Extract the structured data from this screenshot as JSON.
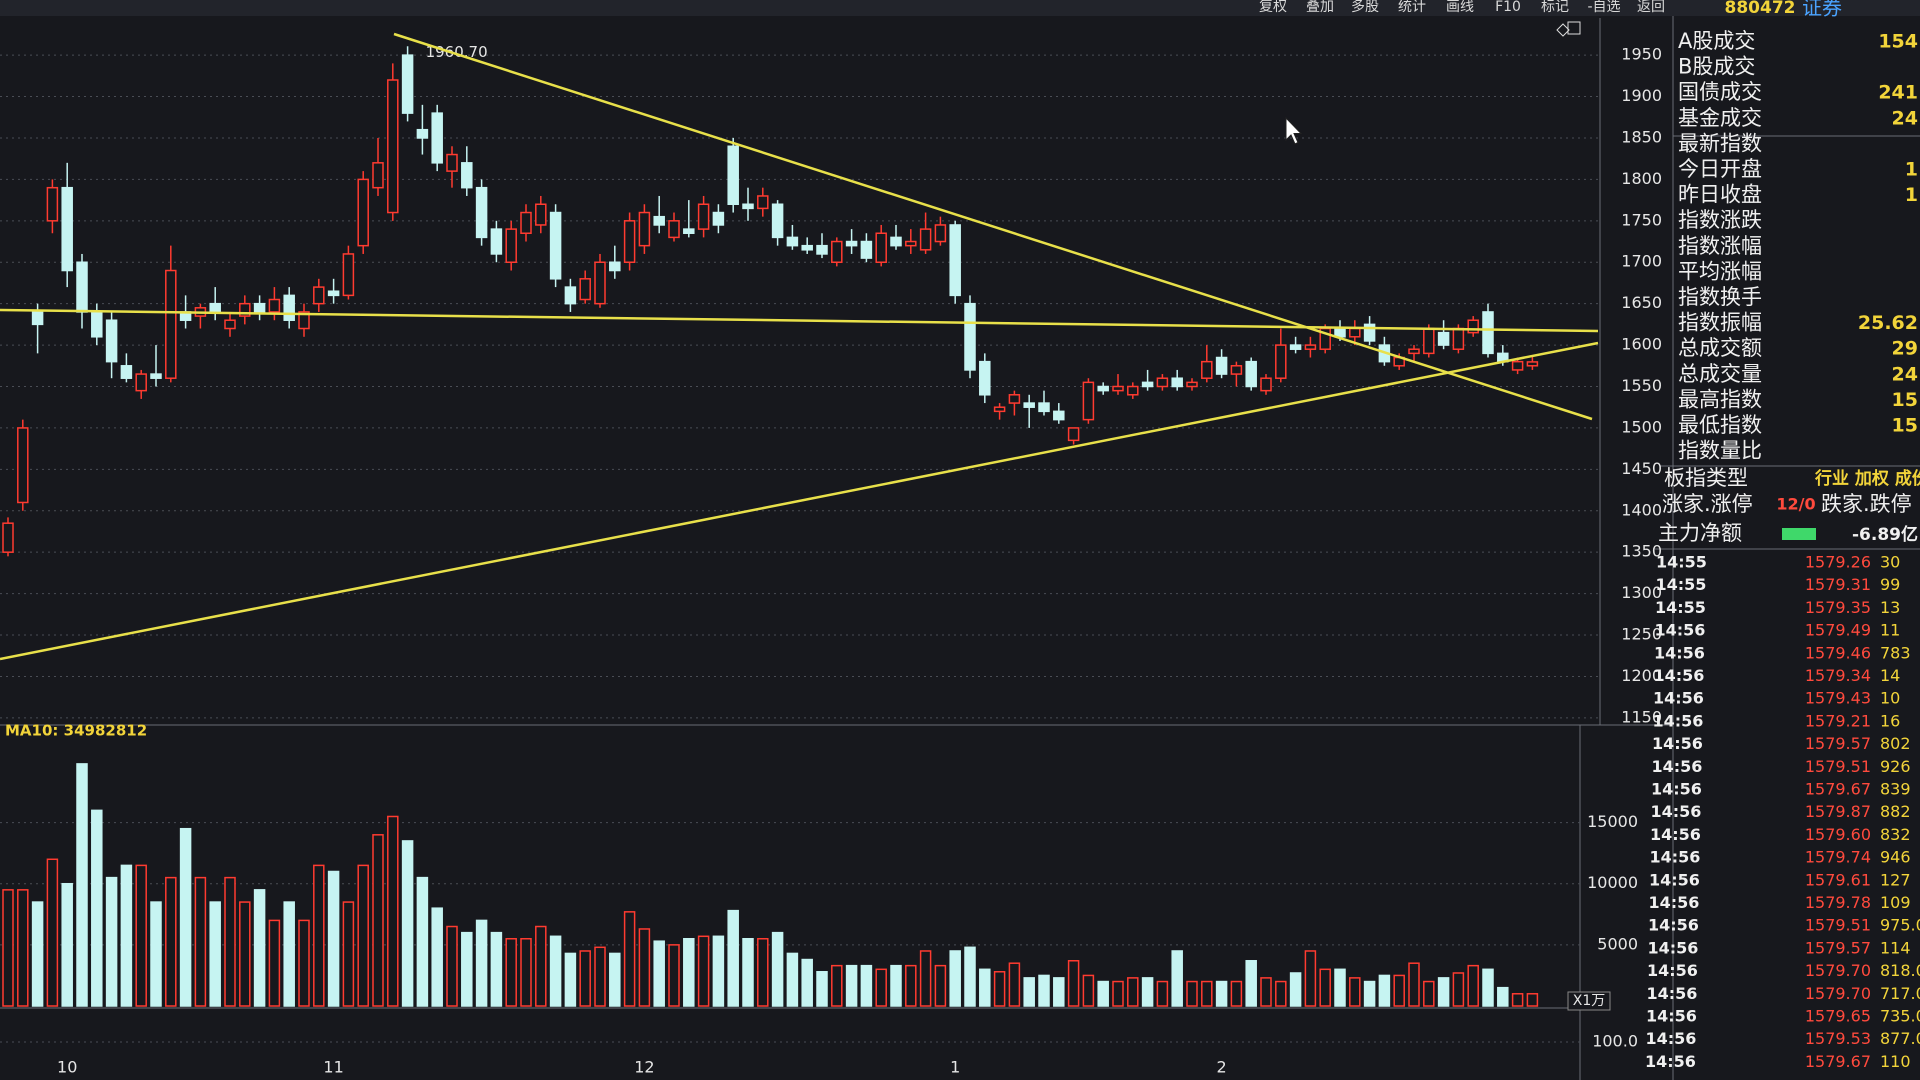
{
  "toolbar": {
    "buttons": [
      "复权",
      "叠加",
      "多股",
      "统计",
      "画线",
      "F10",
      "标记",
      "-自选",
      "返回"
    ],
    "code": "880472",
    "name": "证券"
  },
  "chart_data": [
    {
      "type": "candlestick",
      "up_color": "#ff3b30",
      "down_color": "#c6f4f2",
      "grid": true,
      "ylim": [
        1110,
        1990
      ],
      "yticks": [
        1150,
        1200,
        1250,
        1300,
        1350,
        1400,
        1450,
        1500,
        1550,
        1600,
        1650,
        1700,
        1750,
        1800,
        1850,
        1900,
        1950
      ],
      "high_annotation": {
        "value": 1960.7,
        "label": "1960.70"
      },
      "categories": [
        null,
        null,
        null,
        null,
        "10",
        null,
        null,
        null,
        null,
        null,
        null,
        null,
        null,
        null,
        null,
        null,
        null,
        null,
        null,
        null,
        null,
        null,
        "11",
        null,
        null,
        null,
        null,
        null,
        null,
        null,
        null,
        null,
        null,
        null,
        null,
        null,
        null,
        null,
        null,
        null,
        null,
        null,
        null,
        "12",
        null,
        null,
        null,
        null,
        null,
        null,
        null,
        null,
        null,
        null,
        null,
        null,
        null,
        null,
        null,
        null,
        null,
        null,
        null,
        null,
        "1",
        null,
        null,
        null,
        null,
        null,
        null,
        null,
        null,
        null,
        null,
        null,
        null,
        null,
        null,
        null,
        null,
        null,
        "2",
        null,
        null,
        null,
        null,
        null,
        null,
        null,
        null,
        null,
        null,
        null,
        null,
        null,
        null,
        null,
        null,
        null,
        null,
        null,
        null,
        null
      ],
      "ohlc": [
        [
          1350,
          1392,
          1345,
          1385
        ],
        [
          1410,
          1510,
          1400,
          1500
        ],
        [
          1640,
          1650,
          1590,
          1625
        ],
        [
          1750,
          1800,
          1735,
          1790
        ],
        [
          1790,
          1820,
          1670,
          1690
        ],
        [
          1700,
          1710,
          1620,
          1640
        ],
        [
          1640,
          1650,
          1600,
          1610
        ],
        [
          1630,
          1640,
          1560,
          1580
        ],
        [
          1575,
          1590,
          1555,
          1560
        ],
        [
          1545,
          1570,
          1535,
          1565
        ],
        [
          1565,
          1600,
          1550,
          1560
        ],
        [
          1560,
          1720,
          1555,
          1690
        ],
        [
          1640,
          1660,
          1620,
          1630
        ],
        [
          1635,
          1650,
          1620,
          1645
        ],
        [
          1650,
          1670,
          1630,
          1640
        ],
        [
          1620,
          1640,
          1610,
          1630
        ],
        [
          1635,
          1660,
          1625,
          1650
        ],
        [
          1650,
          1660,
          1630,
          1640
        ],
        [
          1640,
          1670,
          1630,
          1655
        ],
        [
          1660,
          1670,
          1620,
          1630
        ],
        [
          1620,
          1650,
          1610,
          1640
        ],
        [
          1650,
          1680,
          1640,
          1670
        ],
        [
          1665,
          1680,
          1650,
          1660
        ],
        [
          1660,
          1720,
          1655,
          1710
        ],
        [
          1720,
          1810,
          1710,
          1800
        ],
        [
          1790,
          1850,
          1780,
          1820
        ],
        [
          1760,
          1940,
          1750,
          1920
        ],
        [
          1950,
          1960.7,
          1870,
          1880
        ],
        [
          1860,
          1890,
          1830,
          1850
        ],
        [
          1880,
          1890,
          1810,
          1820
        ],
        [
          1810,
          1840,
          1790,
          1830
        ],
        [
          1820,
          1840,
          1780,
          1790
        ],
        [
          1790,
          1800,
          1720,
          1730
        ],
        [
          1740,
          1750,
          1700,
          1710
        ],
        [
          1700,
          1750,
          1690,
          1740
        ],
        [
          1735,
          1770,
          1725,
          1760
        ],
        [
          1745,
          1780,
          1735,
          1770
        ],
        [
          1760,
          1770,
          1670,
          1680
        ],
        [
          1670,
          1680,
          1640,
          1650
        ],
        [
          1655,
          1690,
          1650,
          1680
        ],
        [
          1650,
          1710,
          1645,
          1700
        ],
        [
          1700,
          1720,
          1680,
          1690
        ],
        [
          1700,
          1760,
          1690,
          1750
        ],
        [
          1720,
          1770,
          1710,
          1760
        ],
        [
          1755,
          1780,
          1735,
          1745
        ],
        [
          1730,
          1760,
          1725,
          1750
        ],
        [
          1740,
          1775,
          1730,
          1735
        ],
        [
          1740,
          1780,
          1730,
          1770
        ],
        [
          1760,
          1770,
          1735,
          1745
        ],
        [
          1840,
          1850,
          1760,
          1770
        ],
        [
          1770,
          1790,
          1750,
          1765
        ],
        [
          1765,
          1790,
          1755,
          1780
        ],
        [
          1770,
          1775,
          1720,
          1730
        ],
        [
          1730,
          1745,
          1715,
          1720
        ],
        [
          1720,
          1730,
          1710,
          1715
        ],
        [
          1720,
          1735,
          1705,
          1710
        ],
        [
          1700,
          1730,
          1695,
          1725
        ],
        [
          1725,
          1740,
          1710,
          1720
        ],
        [
          1725,
          1735,
          1700,
          1705
        ],
        [
          1700,
          1745,
          1695,
          1735
        ],
        [
          1730,
          1745,
          1715,
          1720
        ],
        [
          1720,
          1740,
          1710,
          1725
        ],
        [
          1715,
          1760,
          1710,
          1740
        ],
        [
          1725,
          1755,
          1720,
          1745
        ],
        [
          1745,
          1750,
          1650,
          1660
        ],
        [
          1650,
          1660,
          1560,
          1570
        ],
        [
          1580,
          1590,
          1530,
          1540
        ],
        [
          1520,
          1530,
          1510,
          1525
        ],
        [
          1530,
          1545,
          1515,
          1540
        ],
        [
          1530,
          1540,
          1500,
          1525
        ],
        [
          1530,
          1545,
          1515,
          1520
        ],
        [
          1520,
          1530,
          1505,
          1510
        ],
        [
          1485,
          1500,
          1480,
          1500
        ],
        [
          1510,
          1560,
          1505,
          1555
        ],
        [
          1550,
          1555,
          1540,
          1545
        ],
        [
          1545,
          1565,
          1540,
          1550
        ],
        [
          1540,
          1555,
          1535,
          1550
        ],
        [
          1555,
          1570,
          1545,
          1550
        ],
        [
          1550,
          1565,
          1545,
          1560
        ],
        [
          1560,
          1570,
          1545,
          1550
        ],
        [
          1550,
          1560,
          1545,
          1555
        ],
        [
          1560,
          1600,
          1555,
          1580
        ],
        [
          1585,
          1595,
          1560,
          1565
        ],
        [
          1565,
          1580,
          1550,
          1575
        ],
        [
          1580,
          1585,
          1545,
          1550
        ],
        [
          1545,
          1565,
          1540,
          1560
        ],
        [
          1560,
          1620,
          1555,
          1600
        ],
        [
          1600,
          1610,
          1590,
          1595
        ],
        [
          1595,
          1610,
          1585,
          1600
        ],
        [
          1595,
          1625,
          1590,
          1620
        ],
        [
          1620,
          1630,
          1605,
          1610
        ],
        [
          1610,
          1630,
          1600,
          1620
        ],
        [
          1625,
          1635,
          1600,
          1605
        ],
        [
          1600,
          1610,
          1575,
          1580
        ],
        [
          1575,
          1590,
          1570,
          1585
        ],
        [
          1590,
          1600,
          1580,
          1595
        ],
        [
          1590,
          1625,
          1585,
          1620
        ],
        [
          1615,
          1630,
          1595,
          1600
        ],
        [
          1595,
          1625,
          1590,
          1620
        ],
        [
          1615,
          1635,
          1610,
          1630
        ],
        [
          1640,
          1650,
          1585,
          1590
        ],
        [
          1590,
          1600,
          1575,
          1580
        ],
        [
          1570,
          1585,
          1565,
          1580
        ],
        [
          1575,
          1588,
          1570,
          1579.67
        ]
      ]
    },
    {
      "type": "bar",
      "title": "MA10: 34982812",
      "unit_label": "X1万",
      "grid": true,
      "ylim": [
        0,
        22000
      ],
      "yticks": [
        5000,
        10000,
        15000
      ],
      "values": [
        9500,
        9500,
        8500,
        12000,
        10000,
        19800,
        16000,
        10500,
        11500,
        11500,
        8500,
        10500,
        14500,
        10500,
        8500,
        10500,
        8500,
        9500,
        7000,
        8500,
        7000,
        11500,
        11000,
        8500,
        11500,
        14000,
        15500,
        13500,
        10500,
        8000,
        6500,
        6000,
        7000,
        6000,
        5500,
        5500,
        6500,
        5700,
        4300,
        4500,
        4800,
        4300,
        7700,
        6300,
        5300,
        5000,
        5500,
        5700,
        5700,
        7800,
        5500,
        5500,
        6000,
        4300,
        3800,
        2800,
        3300,
        3300,
        3300,
        3000,
        3300,
        3300,
        4500,
        3300,
        4500,
        4800,
        3000,
        2800,
        3500,
        2300,
        2500,
        2300,
        3700,
        2500,
        2000,
        2000,
        2300,
        2300,
        2000,
        4500,
        2000,
        2000,
        2000,
        2000,
        3700,
        2300,
        2000,
        2700,
        4500,
        3000,
        3000,
        2300,
        2000,
        2500,
        2500,
        3500,
        2000,
        2300,
        2700,
        3300,
        3000,
        1500,
        1000,
        1000
      ]
    },
    {
      "type": "indicator",
      "ylim": [
        0,
        200
      ],
      "yticks": [
        {
          "value": 100,
          "label": "100.0"
        }
      ]
    }
  ],
  "side_panel": {
    "rows": [
      {
        "label": "A股成交",
        "value": "154"
      },
      {
        "label": "B股成交"
      },
      {
        "label": "国债成交",
        "value": "241"
      },
      {
        "label": "基金成交",
        "value": "24"
      },
      {
        "label": "最新指数"
      },
      {
        "label": "今日开盘",
        "value": "1"
      },
      {
        "label": "昨日收盘",
        "value": "1"
      },
      {
        "label": "指数涨跌"
      },
      {
        "label": "指数涨幅"
      },
      {
        "label": "平均涨幅"
      },
      {
        "label": "指数换手"
      },
      {
        "label": "指数振幅",
        "value": "25.62"
      },
      {
        "label": "总成交额",
        "value": "29"
      },
      {
        "label": "总成交量",
        "value": "24"
      },
      {
        "label": "最高指数",
        "value": "15"
      },
      {
        "label": "最低指数",
        "value": "15"
      },
      {
        "label": "指数量比"
      }
    ],
    "index_type": {
      "label": "板指类型",
      "options": "行业 加权 成份"
    },
    "breadth": {
      "label": "涨家.涨停",
      "value": "12/0",
      "label2": "跌家.跌停"
    },
    "main_net": {
      "label": "主力净额",
      "value": "-6.89亿"
    }
  },
  "ticks_table": {
    "rows": [
      [
        "14:55",
        "1579.26",
        "30"
      ],
      [
        "14:55",
        "1579.31",
        "99"
      ],
      [
        "14:55",
        "1579.35",
        "13"
      ],
      [
        "14:56",
        "1579.49",
        "11"
      ],
      [
        "14:56",
        "1579.46",
        "783"
      ],
      [
        "14:56",
        "1579.34",
        "14"
      ],
      [
        "14:56",
        "1579.43",
        "10"
      ],
      [
        "14:56",
        "1579.21",
        "16"
      ],
      [
        "14:56",
        "1579.57",
        "802"
      ],
      [
        "14:56",
        "1579.51",
        "926"
      ],
      [
        "14:56",
        "1579.67",
        "839"
      ],
      [
        "14:56",
        "1579.87",
        "882"
      ],
      [
        "14:56",
        "1579.60",
        "832"
      ],
      [
        "14:56",
        "1579.74",
        "946"
      ],
      [
        "14:56",
        "1579.61",
        "127"
      ],
      [
        "14:56",
        "1579.78",
        "109"
      ],
      [
        "14:56",
        "1579.51",
        "975.0"
      ],
      [
        "14:56",
        "1579.57",
        "114"
      ],
      [
        "14:56",
        "1579.70",
        "818.0"
      ],
      [
        "14:56",
        "1579.70",
        "717.0"
      ],
      [
        "14:56",
        "1579.65",
        "735.0"
      ],
      [
        "14:56",
        "1579.53",
        "877.0"
      ],
      [
        "14:56",
        "1579.67",
        "110"
      ]
    ]
  }
}
